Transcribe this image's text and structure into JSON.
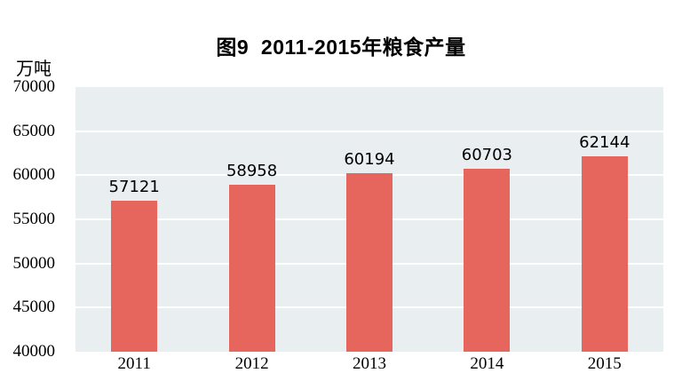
{
  "figure": {
    "title": "图9  2011-2015年粮食产量",
    "unit_label": "万吨"
  },
  "chart_data": {
    "type": "bar",
    "title": "图9  2011-2015年粮食产量",
    "categories": [
      "2011",
      "2012",
      "2013",
      "2014",
      "2015"
    ],
    "values": [
      57121,
      58958,
      60194,
      60703,
      62144
    ],
    "xlabel": "",
    "ylabel": "万吨",
    "ylim": [
      40000,
      70000
    ],
    "yticks": [
      40000,
      45000,
      50000,
      55000,
      60000,
      65000,
      70000
    ],
    "grid": true,
    "legend": "none",
    "data_labels": true,
    "bar_color": "#e6655d",
    "plot_bg": "#e9eef1",
    "gridline_color": "#ffffff",
    "text_color": "#000000"
  }
}
